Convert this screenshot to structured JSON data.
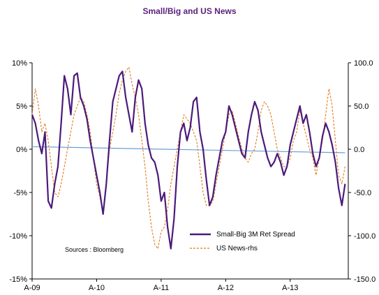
{
  "chart_data": {
    "type": "line",
    "title": "Small/Big and US News",
    "title_color": "#5b1f7a",
    "note": "Sources : Bloomberg",
    "x_tick_labels": [
      "A-09",
      "A-10",
      "A-11",
      "A-12",
      "A-13"
    ],
    "x_ticks": [
      2009.0,
      2010.0,
      2011.0,
      2012.0,
      2013.0
    ],
    "xlim": [
      2009.0,
      2013.9
    ],
    "y_left": {
      "ticks": [
        10,
        5,
        0,
        -5,
        -10,
        -15
      ],
      "tick_labels": [
        "10%",
        "5%",
        "0%",
        "-5%",
        "-10%",
        "-15%"
      ],
      "lim": [
        -15,
        10
      ]
    },
    "y_right": {
      "ticks": [
        100,
        50,
        0,
        -50,
        -100,
        -150
      ],
      "tick_labels": [
        "100.0",
        "50.0",
        "0.0",
        "-50.0",
        "-100.0",
        "-150.0"
      ],
      "lim": [
        -150,
        100
      ]
    },
    "legend_position": "lower-right",
    "series": [
      {
        "name": "Small-Big 3M Ret Spread",
        "axis": "left",
        "color": "#4b1a7a",
        "style": "solid",
        "x": [
          2009.0,
          2009.05,
          2009.1,
          2009.15,
          2009.2,
          2009.25,
          2009.3,
          2009.35,
          2009.4,
          2009.45,
          2009.5,
          2009.55,
          2009.6,
          2009.65,
          2009.7,
          2009.75,
          2009.8,
          2009.85,
          2009.9,
          2009.95,
          2010.0,
          2010.05,
          2010.1,
          2010.15,
          2010.2,
          2010.25,
          2010.3,
          2010.35,
          2010.4,
          2010.45,
          2010.5,
          2010.55,
          2010.6,
          2010.65,
          2010.7,
          2010.75,
          2010.8,
          2010.85,
          2010.9,
          2010.95,
          2011.0,
          2011.05,
          2011.1,
          2011.15,
          2011.2,
          2011.25,
          2011.3,
          2011.35,
          2011.4,
          2011.45,
          2011.5,
          2011.55,
          2011.6,
          2011.65,
          2011.7,
          2011.75,
          2011.8,
          2011.85,
          2011.9,
          2011.95,
          2012.0,
          2012.05,
          2012.1,
          2012.15,
          2012.2,
          2012.25,
          2012.3,
          2012.35,
          2012.4,
          2012.45,
          2012.5,
          2012.55,
          2012.6,
          2012.65,
          2012.7,
          2012.75,
          2012.8,
          2012.85,
          2012.9,
          2012.95,
          2013.0,
          2013.05,
          2013.1,
          2013.15,
          2013.2,
          2013.25,
          2013.3,
          2013.35,
          2013.4,
          2013.45,
          2013.5,
          2013.55,
          2013.6,
          2013.65,
          2013.7,
          2013.75,
          2013.8,
          2013.85
        ],
        "values": [
          4.0,
          3.0,
          1.0,
          -0.5,
          2.0,
          -6.0,
          -6.8,
          -4.0,
          -2.0,
          3.0,
          8.5,
          7.0,
          4.0,
          8.5,
          8.8,
          6.0,
          5.0,
          3.5,
          1.0,
          -1.0,
          -3.0,
          -5.0,
          -7.5,
          -4.0,
          1.0,
          5.5,
          7.0,
          8.5,
          9.0,
          6.0,
          4.0,
          2.0,
          6.0,
          8.0,
          7.0,
          3.0,
          0.5,
          -1.0,
          -1.5,
          -3.0,
          -6.0,
          -5.0,
          -9.0,
          -11.5,
          -8.0,
          -2.0,
          2.0,
          3.0,
          1.0,
          2.5,
          5.5,
          6.0,
          2.0,
          0.0,
          -3.5,
          -6.5,
          -5.5,
          -3.0,
          -1.0,
          1.0,
          2.0,
          5.0,
          4.0,
          2.5,
          1.0,
          -0.5,
          -1.0,
          2.0,
          4.0,
          5.5,
          4.5,
          2.0,
          0.5,
          -1.0,
          -2.0,
          -1.5,
          -0.5,
          -1.5,
          -3.0,
          -2.0,
          0.5,
          2.0,
          3.5,
          5.0,
          3.0,
          4.0,
          2.0,
          -0.5,
          -2.0,
          -1.0,
          1.5,
          3.0,
          2.0,
          0.5,
          -1.5,
          -4.5,
          -6.5,
          -4.0
        ]
      },
      {
        "name": "US News-rhs",
        "axis": "right",
        "color": "#e07b1a",
        "style": "dashed",
        "x": [
          2009.0,
          2009.05,
          2009.1,
          2009.15,
          2009.2,
          2009.25,
          2009.3,
          2009.35,
          2009.4,
          2009.45,
          2009.5,
          2009.55,
          2009.6,
          2009.65,
          2009.7,
          2009.75,
          2009.8,
          2009.85,
          2009.9,
          2009.95,
          2010.0,
          2010.05,
          2010.1,
          2010.15,
          2010.2,
          2010.25,
          2010.3,
          2010.35,
          2010.4,
          2010.45,
          2010.5,
          2010.55,
          2010.6,
          2010.65,
          2010.7,
          2010.75,
          2010.8,
          2010.85,
          2010.9,
          2010.95,
          2011.0,
          2011.05,
          2011.1,
          2011.15,
          2011.2,
          2011.25,
          2011.3,
          2011.35,
          2011.4,
          2011.45,
          2011.5,
          2011.55,
          2011.6,
          2011.65,
          2011.7,
          2011.75,
          2011.8,
          2011.85,
          2011.9,
          2011.95,
          2012.0,
          2012.05,
          2012.1,
          2012.15,
          2012.2,
          2012.25,
          2012.3,
          2012.35,
          2012.4,
          2012.45,
          2012.5,
          2012.55,
          2012.6,
          2012.65,
          2012.7,
          2012.75,
          2012.8,
          2012.85,
          2012.9,
          2012.95,
          2013.0,
          2013.05,
          2013.1,
          2013.15,
          2013.2,
          2013.25,
          2013.3,
          2013.35,
          2013.4,
          2013.45,
          2013.5,
          2013.55,
          2013.6,
          2013.65,
          2013.7,
          2013.75,
          2013.8,
          2013.85
        ],
        "values": [
          40.0,
          70.0,
          50.0,
          20.0,
          30.0,
          10.0,
          -20.0,
          -50.0,
          -55.0,
          -40.0,
          -20.0,
          0.0,
          20.0,
          40.0,
          50.0,
          60.0,
          55.0,
          40.0,
          20.0,
          -10.0,
          -40.0,
          -55.0,
          -75.0,
          -40.0,
          0.0,
          20.0,
          40.0,
          65.0,
          80.0,
          90.0,
          95.0,
          75.0,
          60.0,
          40.0,
          10.0,
          -20.0,
          -60.0,
          -90.0,
          -110.0,
          -115.0,
          -95.0,
          -90.0,
          -70.0,
          -40.0,
          -20.0,
          0.0,
          20.0,
          40.0,
          35.0,
          30.0,
          20.0,
          10.0,
          -20.0,
          -50.0,
          -65.0,
          -65.0,
          -60.0,
          -40.0,
          -20.0,
          0.0,
          20.0,
          40.0,
          45.0,
          30.0,
          15.0,
          0.0,
          -10.0,
          -15.0,
          -5.0,
          0.0,
          20.0,
          45.0,
          55.0,
          50.0,
          40.0,
          20.0,
          0.0,
          -10.0,
          -20.0,
          -20.0,
          -10.0,
          10.0,
          20.0,
          45.0,
          30.0,
          15.0,
          0.0,
          -10.0,
          -30.0,
          -10.0,
          10.0,
          40.0,
          70.0,
          50.0,
          10.0,
          -30.0,
          -40.0,
          -20.0
        ]
      },
      {
        "name": "",
        "axis": "right",
        "color": "#6a9ed4",
        "style": "solid",
        "x": [
          2009.0,
          2013.85
        ],
        "values": [
          3.0,
          -4.0
        ]
      }
    ]
  }
}
